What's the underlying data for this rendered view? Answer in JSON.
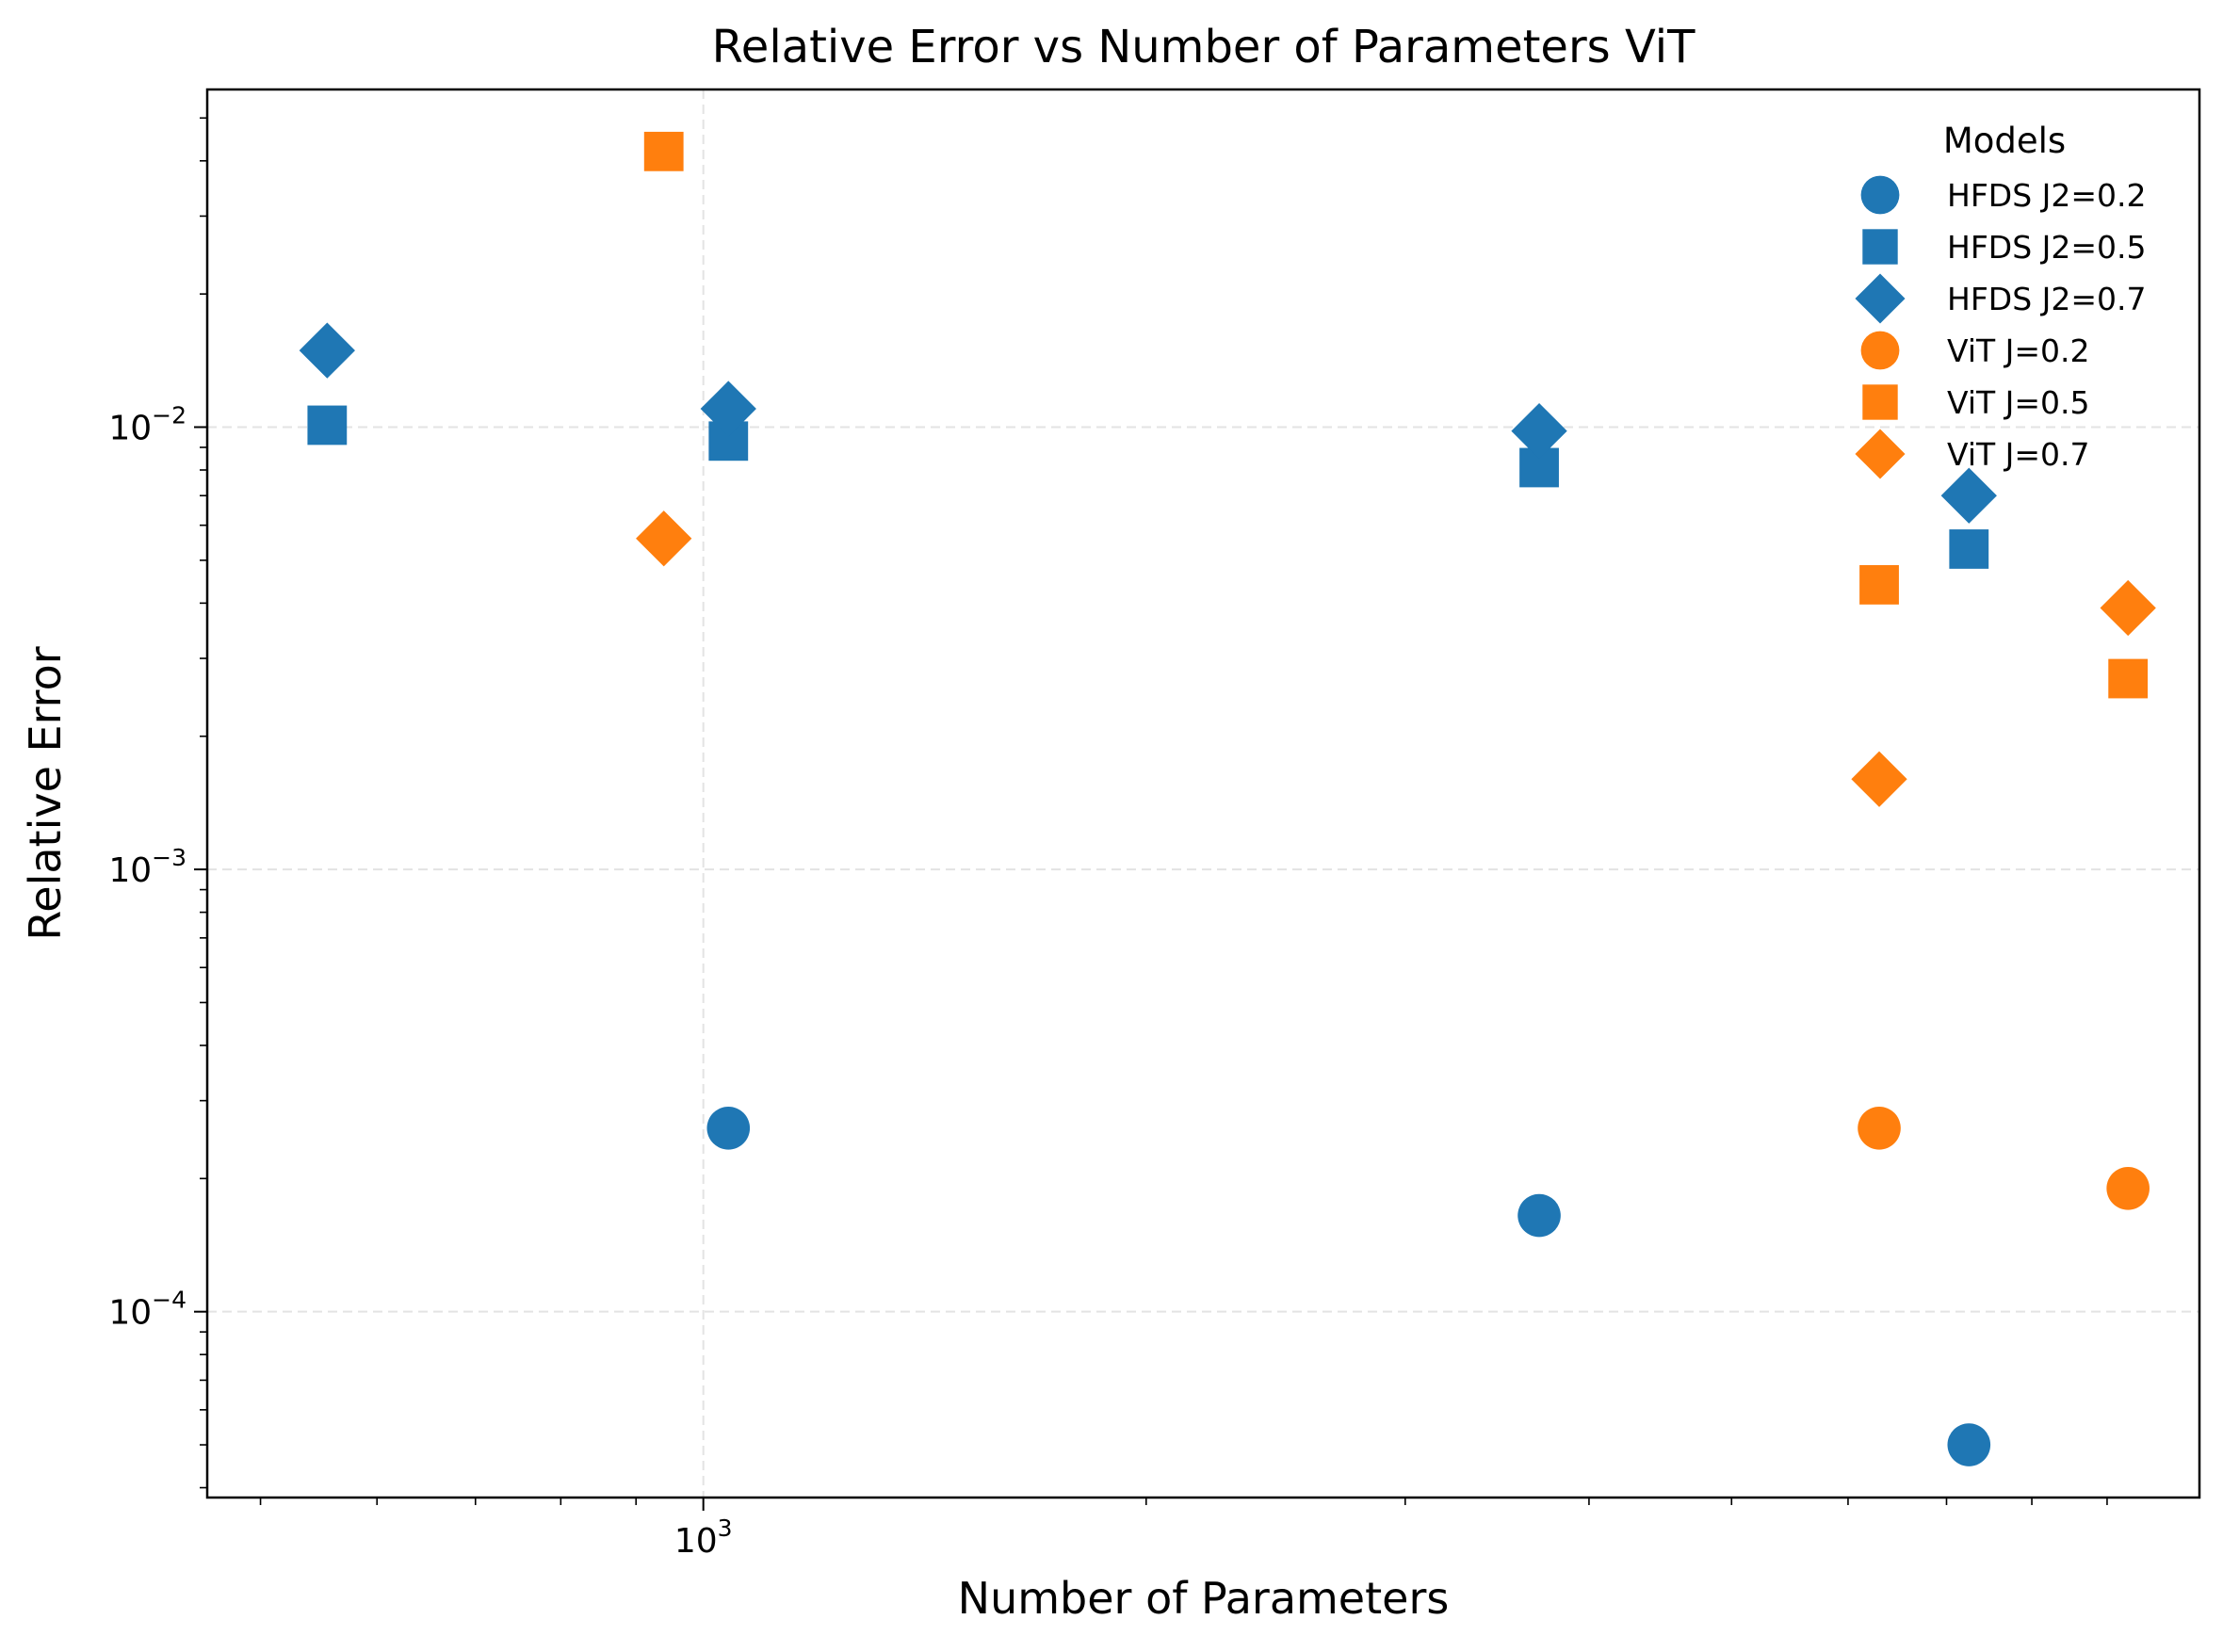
{
  "chart_data": {
    "type": "scatter",
    "title": "Relative Error vs Number of Parameters ViT",
    "xlabel": "Number of Parameters",
    "ylabel": "Relative Error",
    "xscale": "log",
    "yscale": "log",
    "xlim": [
      460,
      10400
    ],
    "ylim": [
      3.8e-05,
      0.058
    ],
    "x_ticks": [
      {
        "value": 1000,
        "base": "10",
        "exp": "3"
      }
    ],
    "y_ticks": [
      {
        "value": 0.0001,
        "base": "10",
        "exp": "−4"
      },
      {
        "value": 0.001,
        "base": "10",
        "exp": "−3"
      },
      {
        "value": 0.01,
        "base": "10",
        "exp": "−2"
      }
    ],
    "grid": true,
    "legend": {
      "title": "Models",
      "placement": "top-right"
    },
    "colors": {
      "hfds": "#1f77b4",
      "vit": "#ff7f0e"
    },
    "series": [
      {
        "name": "HFDS J2=0.2",
        "color": "#1f77b4",
        "marker": "circle",
        "points": [
          [
            1040,
            0.00026
          ],
          [
            3700,
            0.000165
          ],
          [
            7250,
            5e-05
          ]
        ]
      },
      {
        "name": "HFDS J2=0.5",
        "color": "#1f77b4",
        "marker": "square",
        "points": [
          [
            555,
            0.0101
          ],
          [
            1040,
            0.0093
          ],
          [
            3700,
            0.0081
          ],
          [
            7250,
            0.0053
          ]
        ]
      },
      {
        "name": "HFDS J2=0.7",
        "color": "#1f77b4",
        "marker": "diamond",
        "points": [
          [
            555,
            0.0149
          ],
          [
            1040,
            0.011
          ],
          [
            3700,
            0.0098
          ],
          [
            7250,
            0.007
          ]
        ]
      },
      {
        "name": "ViT J=0.2",
        "color": "#ff7f0e",
        "marker": "circle",
        "points": [
          [
            6300,
            0.00026
          ],
          [
            9300,
            0.00019
          ]
        ]
      },
      {
        "name": "ViT J=0.5",
        "color": "#ff7f0e",
        "marker": "square",
        "points": [
          [
            940,
            0.042
          ],
          [
            6300,
            0.0044
          ],
          [
            9300,
            0.0027
          ]
        ]
      },
      {
        "name": "ViT J=0.7",
        "color": "#ff7f0e",
        "marker": "diamond",
        "points": [
          [
            940,
            0.0056
          ],
          [
            6300,
            0.0016
          ],
          [
            9300,
            0.0039
          ]
        ]
      }
    ]
  }
}
